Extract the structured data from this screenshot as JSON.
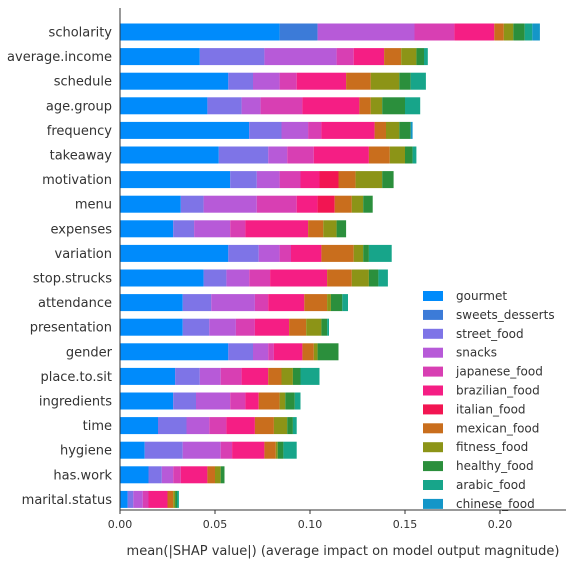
{
  "chart_data": {
    "type": "bar",
    "stacked": true,
    "orientation": "horizontal",
    "xlabel": "mean(|SHAP value|) (average impact on model output magnitude)",
    "xlim": [
      0,
      0.235
    ],
    "xticks": [
      "0.00",
      "0.05",
      "0.10",
      "0.15",
      "0.20"
    ],
    "xtick_values": [
      0,
      0.05,
      0.1,
      0.15,
      0.2
    ],
    "legend_position": "lower-right",
    "categories": [
      "scholarity",
      "average.income",
      "schedule",
      "age.group",
      "frequency",
      "takeaway",
      "motivation",
      "menu",
      "expenses",
      "variation",
      "stop.strucks",
      "attendance",
      "presentation",
      "gender",
      "place.to.sit",
      "ingredients",
      "time",
      "hygiene",
      "has.work",
      "marital.status"
    ],
    "series": [
      {
        "name": "gourmet",
        "color": "#008bfb",
        "values": [
          0.084,
          0.042,
          0.057,
          0.046,
          0.068,
          0.052,
          0.058,
          0.032,
          0.028,
          0.057,
          0.044,
          0.033,
          0.033,
          0.057,
          0.029,
          0.028,
          0.02,
          0.013,
          0.015,
          0.004
        ]
      },
      {
        "name": "sweets_desserts",
        "color": "#3c7bd8",
        "values": [
          0.02,
          0.0,
          0.0,
          0.0,
          0.0,
          0.0,
          0.0,
          0.0,
          0.0,
          0.0,
          0.0,
          0.0,
          0.0,
          0.0,
          0.0,
          0.0,
          0.0,
          0.0,
          0.0,
          0.0
        ]
      },
      {
        "name": "street_food",
        "color": "#7e74e7",
        "values": [
          0.0,
          0.034,
          0.013,
          0.018,
          0.017,
          0.026,
          0.014,
          0.012,
          0.011,
          0.016,
          0.012,
          0.015,
          0.014,
          0.013,
          0.013,
          0.012,
          0.015,
          0.02,
          0.007,
          0.003
        ]
      },
      {
        "name": "snacks",
        "color": "#b75ad8",
        "values": [
          0.051,
          0.038,
          0.014,
          0.01,
          0.014,
          0.01,
          0.012,
          0.028,
          0.019,
          0.011,
          0.012,
          0.023,
          0.014,
          0.008,
          0.011,
          0.018,
          0.012,
          0.02,
          0.006,
          0.005
        ]
      },
      {
        "name": "japanese_food",
        "color": "#d83fb3",
        "values": [
          0.021,
          0.009,
          0.009,
          0.022,
          0.007,
          0.014,
          0.011,
          0.021,
          0.008,
          0.006,
          0.011,
          0.007,
          0.01,
          0.003,
          0.011,
          0.008,
          0.009,
          0.006,
          0.004,
          0.003
        ]
      },
      {
        "name": "brazilian_food",
        "color": "#f51e84",
        "values": [
          0.021,
          0.016,
          0.026,
          0.03,
          0.028,
          0.029,
          0.01,
          0.011,
          0.033,
          0.016,
          0.03,
          0.019,
          0.018,
          0.015,
          0.014,
          0.007,
          0.015,
          0.017,
          0.014,
          0.01
        ]
      },
      {
        "name": "italian_food",
        "color": "#f21552",
        "values": [
          0.0,
          0.0,
          0.0,
          0.0,
          0.0,
          0.0,
          0.01,
          0.009,
          0.0,
          0.0,
          0.0,
          0.0,
          0.0,
          0.0,
          0.0,
          0.0,
          0.0,
          0.0,
          0.0,
          0.0
        ]
      },
      {
        "name": "mexican_food",
        "color": "#c96e1d",
        "values": [
          0.005,
          0.009,
          0.013,
          0.006,
          0.006,
          0.011,
          0.009,
          0.009,
          0.008,
          0.017,
          0.013,
          0.012,
          0.009,
          0.006,
          0.007,
          0.011,
          0.01,
          0.006,
          0.004,
          0.003
        ]
      },
      {
        "name": "fitness_food",
        "color": "#8c9417",
        "values": [
          0.005,
          0.008,
          0.015,
          0.006,
          0.007,
          0.008,
          0.014,
          0.006,
          0.007,
          0.005,
          0.009,
          0.002,
          0.008,
          0.002,
          0.006,
          0.003,
          0.007,
          0.001,
          0.003,
          0.001
        ]
      },
      {
        "name": "healthy_food",
        "color": "#2b8f3c",
        "values": [
          0.006,
          0.004,
          0.006,
          0.012,
          0.006,
          0.004,
          0.006,
          0.005,
          0.005,
          0.003,
          0.005,
          0.006,
          0.003,
          0.011,
          0.004,
          0.005,
          0.003,
          0.003,
          0.002,
          0.001
        ]
      },
      {
        "name": "arabic_food",
        "color": "#17a58a",
        "values": [
          0.004,
          0.002,
          0.008,
          0.008,
          0.0,
          0.002,
          0.0,
          0.0,
          0.0,
          0.012,
          0.005,
          0.003,
          0.001,
          0.0,
          0.01,
          0.003,
          0.002,
          0.007,
          0.0,
          0.001
        ]
      },
      {
        "name": "chinese_food",
        "color": "#1496c8",
        "values": [
          0.004,
          0.0,
          0.0,
          0.0,
          0.001,
          0.0,
          0.0,
          0.0,
          0.0,
          0.0,
          0.0,
          0.0,
          0.0,
          0.0,
          0.0,
          0.0,
          0.0,
          0.0,
          0.0,
          0.0
        ]
      }
    ]
  }
}
